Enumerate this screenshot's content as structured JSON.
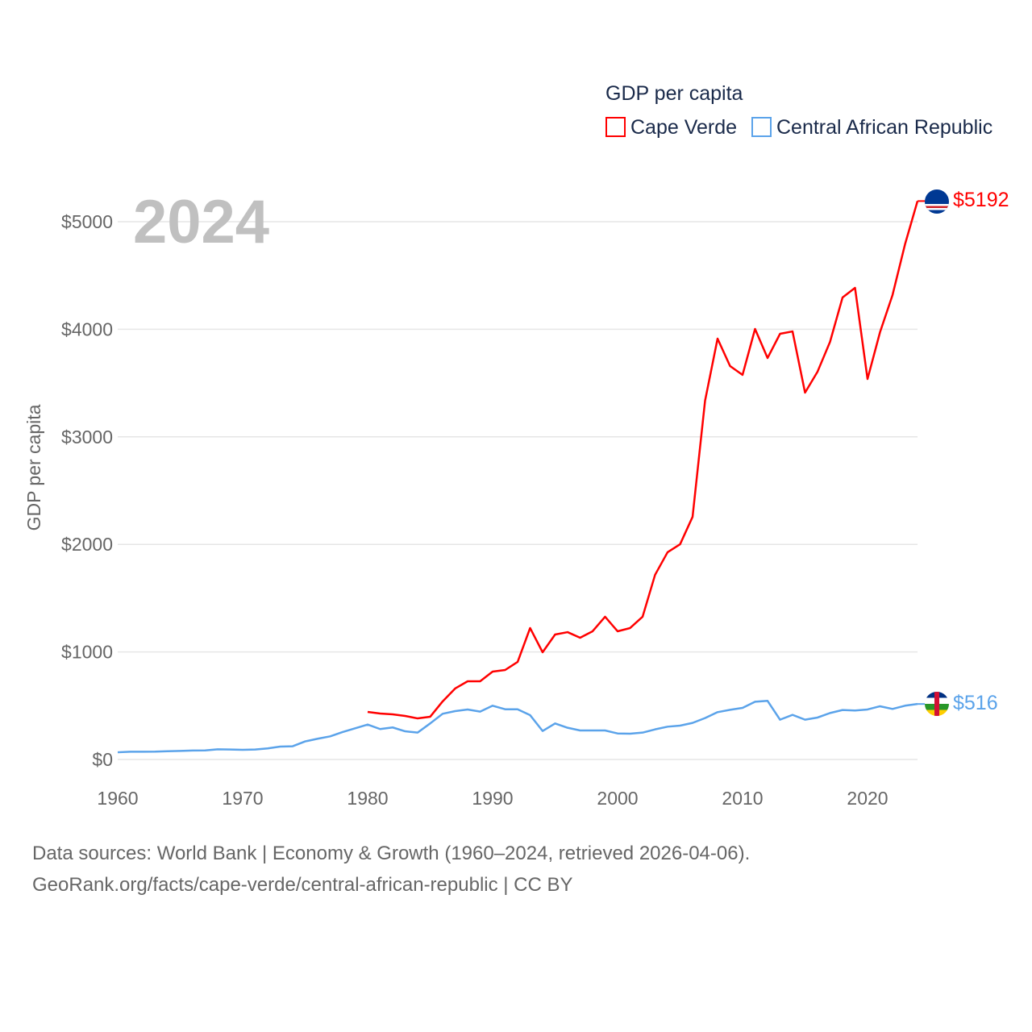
{
  "chart_data": {
    "type": "line",
    "title": "GDP per capita",
    "year_label": "2024",
    "xlabel": "",
    "ylabel": "GDP per capita",
    "xlim": [
      1960,
      2024
    ],
    "ylim": [
      0,
      5300
    ],
    "x_ticks": [
      1960,
      1970,
      1980,
      1990,
      2000,
      2010,
      2020
    ],
    "y_ticks": [
      0,
      1000,
      2000,
      3000,
      4000,
      5000
    ],
    "y_tick_labels": [
      "$0",
      "$1000",
      "$2000",
      "$3000",
      "$4000",
      "$5000"
    ],
    "grid": true,
    "legend_position": "top-right",
    "series": [
      {
        "name": "Cape Verde",
        "color": "#ff0000",
        "end_label": "$5192",
        "flag": "cape-verde-flag",
        "start_year": 1980,
        "values": [
          442,
          427,
          420,
          405,
          382,
          397,
          540,
          660,
          727,
          727,
          817,
          832,
          907,
          1222,
          997,
          1162,
          1184,
          1132,
          1192,
          1327,
          1192,
          1222,
          1327,
          1717,
          1927,
          2001,
          2256,
          3336,
          3913,
          3658,
          3576,
          4003,
          3733,
          3958,
          3980,
          3411,
          3606,
          3883,
          4295,
          4385,
          3538,
          3973,
          4318,
          4790,
          5192
        ]
      },
      {
        "name": "Central African Republic",
        "color": "#5ba3ea",
        "end_label": "$516",
        "flag": "central-african-republic-flag",
        "start_year": 1960,
        "values": [
          67,
          72,
          72,
          73,
          77,
          80,
          83,
          84,
          95,
          93,
          90,
          93,
          103,
          120,
          123,
          168,
          193,
          215,
          255,
          290,
          325,
          283,
          298,
          262,
          250,
          335,
          425,
          450,
          465,
          445,
          500,
          467,
          467,
          412,
          265,
          335,
          295,
          270,
          270,
          270,
          242,
          240,
          250,
          280,
          305,
          315,
          340,
          385,
          440,
          462,
          480,
          537,
          545,
          370,
          415,
          370,
          390,
          432,
          460,
          455,
          465,
          495,
          470,
          500,
          516
        ]
      }
    ]
  },
  "footer": {
    "line1": "Data sources: World Bank | Economy & Growth (1960–2024, retrieved 2026-04-06).",
    "line2": "GeoRank.org/facts/cape-verde/central-african-republic | CC BY"
  }
}
